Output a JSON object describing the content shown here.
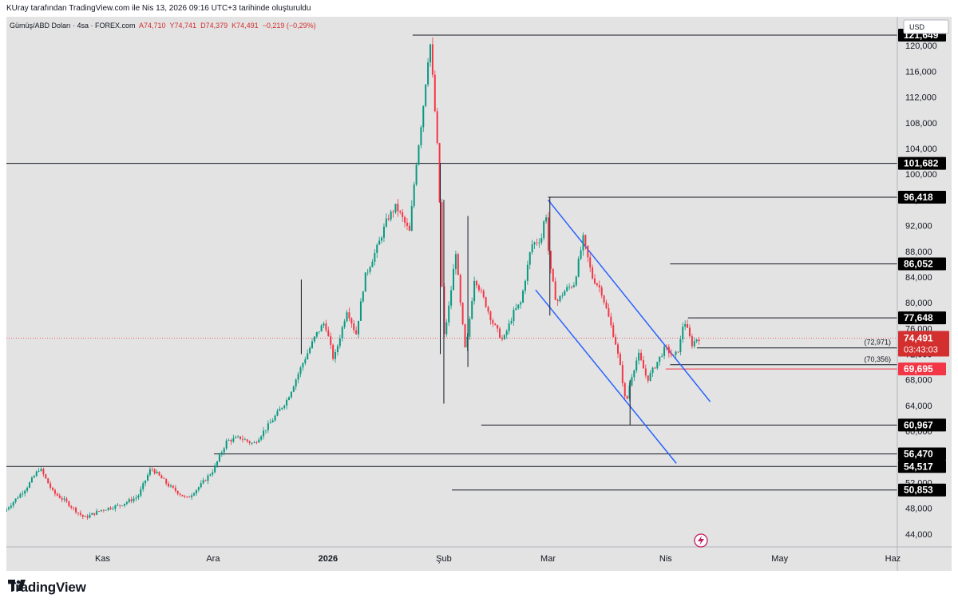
{
  "header": {
    "created_by": "KUray tarafından TradingView.com ile Nis 13, 2026 09:16 UTC+3 tarihinde oluşturuldu"
  },
  "legend": {
    "symbol": "Gümüş/ABD Doları · 4sa · FOREX.com",
    "open": "A74,710",
    "high": "Y74,741",
    "low": "D74,379",
    "close": "K74,491",
    "change": "−0,219 (−0,29%)"
  },
  "currency": "USD",
  "brand": "TradingView",
  "colors": {
    "background": "#e3e3e3",
    "up_candle": "#089981",
    "down_candle": "#f23645",
    "channel": "#2962ff",
    "level_line": "#131722",
    "price_label_bg": "#000000",
    "current_price_bg": "#d32f2f",
    "red_level_bg": "#f23645"
  },
  "chart_data": {
    "type": "candlestick",
    "title": "Gümüş/ABD Doları · 4sa · FOREX.com",
    "ylabel": "USD",
    "ylim": [
      42000,
      124500
    ],
    "y_ticks": [
      "44,000",
      "48,000",
      "52,000",
      "56,000",
      "60,000",
      "64,000",
      "68,000",
      "72,000",
      "76,000",
      "80,000",
      "84,000",
      "88,000",
      "92,000",
      "96,000",
      "100,000",
      "104,000",
      "108,000",
      "112,000",
      "116,000",
      "120,000"
    ],
    "y_tick_values": [
      44000,
      48000,
      52000,
      56000,
      60000,
      64000,
      68000,
      72000,
      76000,
      80000,
      84000,
      88000,
      92000,
      96000,
      100000,
      104000,
      108000,
      112000,
      116000,
      120000
    ],
    "x_labels": [
      {
        "label": "Kas",
        "t": 0.108
      },
      {
        "label": "Ara",
        "t": 0.232
      },
      {
        "label": "2026",
        "t": 0.361,
        "bold": true
      },
      {
        "label": "Şub",
        "t": 0.491
      },
      {
        "label": "Mar",
        "t": 0.608
      },
      {
        "label": "Nis",
        "t": 0.74
      },
      {
        "label": "May",
        "t": 0.868
      },
      {
        "label": "Haz",
        "t": 0.995
      }
    ],
    "price_path": [
      [
        0.0,
        47500
      ],
      [
        0.025,
        51200
      ],
      [
        0.04,
        54300
      ],
      [
        0.055,
        50500
      ],
      [
        0.068,
        49200
      ],
      [
        0.09,
        46500
      ],
      [
        0.11,
        47800
      ],
      [
        0.13,
        48500
      ],
      [
        0.15,
        49800
      ],
      [
        0.165,
        54300
      ],
      [
        0.185,
        51500
      ],
      [
        0.205,
        49500
      ],
      [
        0.22,
        51500
      ],
      [
        0.235,
        54000
      ],
      [
        0.25,
        58500
      ],
      [
        0.265,
        59000
      ],
      [
        0.28,
        58000
      ],
      [
        0.3,
        61500
      ],
      [
        0.318,
        65000
      ],
      [
        0.335,
        70500
      ],
      [
        0.35,
        75000
      ],
      [
        0.36,
        77000
      ],
      [
        0.37,
        71000
      ],
      [
        0.385,
        79000
      ],
      [
        0.395,
        75000
      ],
      [
        0.405,
        84000
      ],
      [
        0.42,
        89000
      ],
      [
        0.43,
        93000
      ],
      [
        0.44,
        95000
      ],
      [
        0.455,
        91000
      ],
      [
        0.462,
        101000
      ],
      [
        0.47,
        110000
      ],
      [
        0.478,
        121000
      ],
      [
        0.482,
        113000
      ],
      [
        0.486,
        105000
      ],
      [
        0.489,
        95000
      ],
      [
        0.493,
        74000
      ],
      [
        0.5,
        80000
      ],
      [
        0.507,
        88000
      ],
      [
        0.512,
        80000
      ],
      [
        0.518,
        72000
      ],
      [
        0.528,
        84000
      ],
      [
        0.54,
        80000
      ],
      [
        0.548,
        77000
      ],
      [
        0.56,
        74000
      ],
      [
        0.572,
        78500
      ],
      [
        0.58,
        80000
      ],
      [
        0.592,
        89000
      ],
      [
        0.603,
        90000
      ],
      [
        0.608,
        94500
      ],
      [
        0.612,
        86000
      ],
      [
        0.62,
        80000
      ],
      [
        0.63,
        82000
      ],
      [
        0.64,
        83000
      ],
      [
        0.65,
        90000
      ],
      [
        0.66,
        84000
      ],
      [
        0.67,
        82000
      ],
      [
        0.678,
        78000
      ],
      [
        0.686,
        74000
      ],
      [
        0.693,
        69000
      ],
      [
        0.698,
        64000
      ],
      [
        0.703,
        68000
      ],
      [
        0.712,
        72000
      ],
      [
        0.722,
        68000
      ],
      [
        0.732,
        70500
      ],
      [
        0.742,
        73000
      ],
      [
        0.752,
        71500
      ],
      [
        0.758,
        73000
      ],
      [
        0.763,
        77500
      ],
      [
        0.772,
        73500
      ],
      [
        0.778,
        74491
      ]
    ],
    "price_wicks": [
      {
        "t": 0.331,
        "high": 83600,
        "low": 72000
      },
      {
        "t": 0.487,
        "high": 101700,
        "low": 72000
      },
      {
        "t": 0.491,
        "high": 96000,
        "low": 64300
      },
      {
        "t": 0.518,
        "high": 93500,
        "low": 70000
      },
      {
        "t": 0.61,
        "high": 96418,
        "low": 78000
      },
      {
        "t": 0.7,
        "high": 68000,
        "low": 60967
      }
    ],
    "horizontal_levels": [
      {
        "value": 121649,
        "label": "121,649",
        "t_start": 0.456
      },
      {
        "value": 101682,
        "label": "101,682",
        "t_start": 0.0
      },
      {
        "value": 96418,
        "label": "96,418",
        "t_start": 0.608
      },
      {
        "value": 86052,
        "label": "86,052",
        "t_start": 0.745
      },
      {
        "value": 77648,
        "label": "77,648",
        "t_start": 0.765
      },
      {
        "value": 72971,
        "label": "(72,971)",
        "t_start": 0.775,
        "inline": true
      },
      {
        "value": 70356,
        "label": "(70,356)",
        "t_start": 0.745,
        "inline": true
      },
      {
        "value": 69695,
        "label": "69,695",
        "t_start": 0.74,
        "style": "red"
      },
      {
        "value": 60967,
        "label": "60,967",
        "t_start": 0.533
      },
      {
        "value": 56470,
        "label": "56,470",
        "t_start": 0.233
      },
      {
        "value": 54517,
        "label": "54,517",
        "t_start": 0.0
      },
      {
        "value": 50853,
        "label": "50,853",
        "t_start": 0.5
      }
    ],
    "current_price": {
      "value": 74491,
      "label": "74,491",
      "countdown": "03:43:03"
    },
    "channel_lines": [
      {
        "from": [
          0.608,
          96000
        ],
        "to": [
          0.79,
          64600
        ]
      },
      {
        "from": [
          0.594,
          82000
        ],
        "to": [
          0.752,
          55000
        ]
      }
    ]
  }
}
